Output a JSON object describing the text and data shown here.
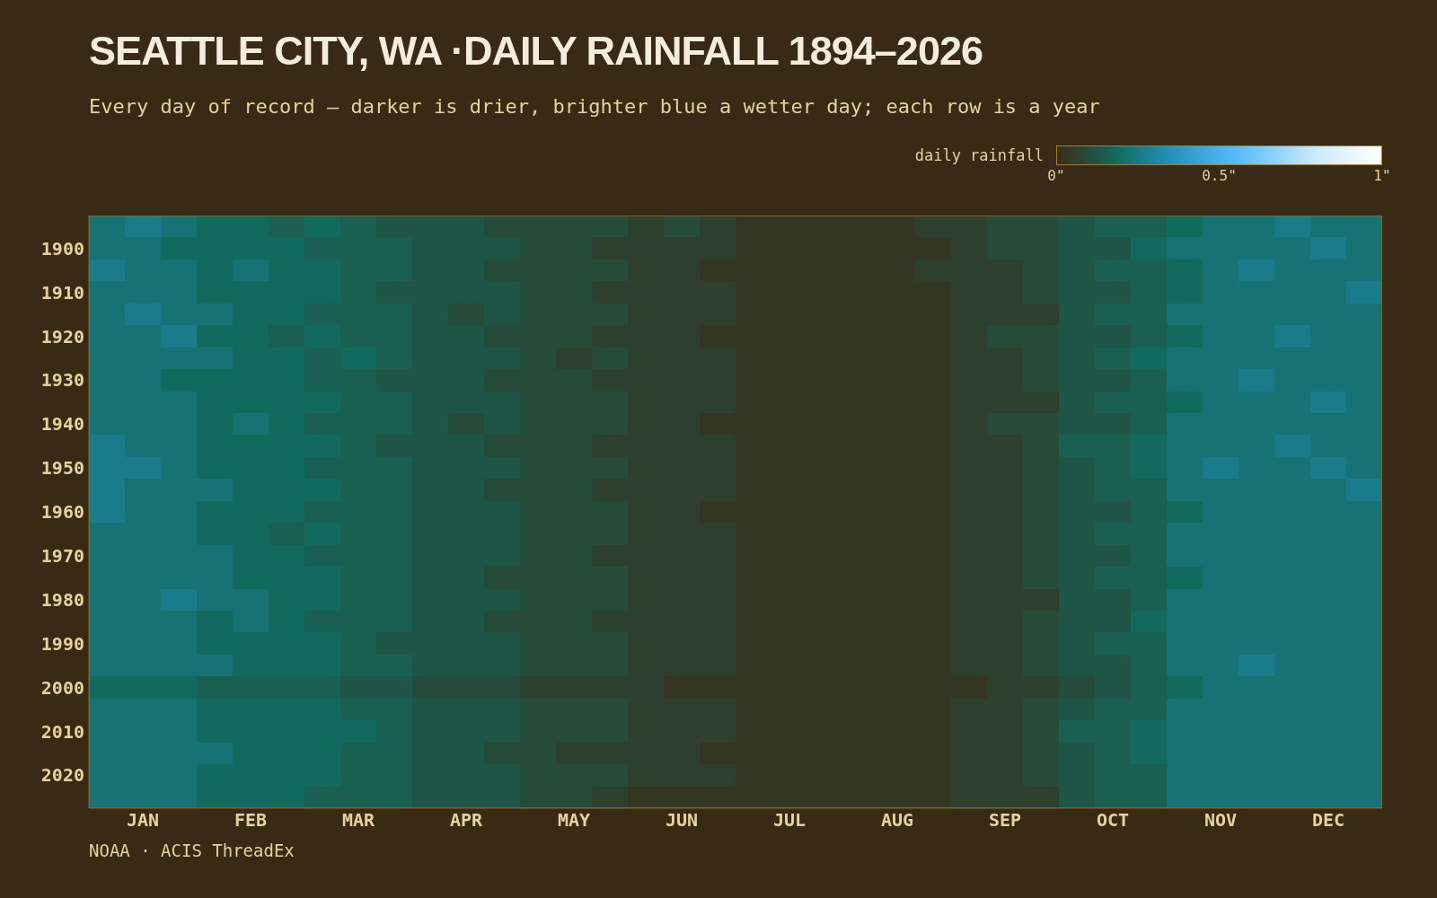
{
  "chart_data": {
    "type": "heatmap",
    "title": "SEATTLE CITY, WA ·DAILY RAINFALL 1894–2026",
    "subtitle": "Every day of record — darker is drier, brighter blue a wetter day; each row is a year",
    "clabel": "daily rainfall",
    "clim": [
      0,
      1
    ],
    "cticks": [
      {
        "value": 0,
        "label": "0\""
      },
      {
        "value": 0.5,
        "label": "0.5\""
      },
      {
        "value": 1,
        "label": "1\""
      }
    ],
    "categories": [
      null,
      "JAN",
      null,
      null,
      "FEB",
      null,
      null,
      "MAR",
      null,
      null,
      "APR",
      null,
      null,
      "MAY",
      null,
      null,
      "JUN",
      null,
      null,
      "JUL",
      null,
      null,
      "AUG",
      null,
      null,
      "SEP",
      null,
      null,
      "OCT",
      null,
      null,
      "NOV",
      null,
      null,
      "DEC",
      null
    ],
    "y_categories": [
      null,
      "1900",
      null,
      "1910",
      null,
      "1920",
      null,
      "1930",
      null,
      "1940",
      null,
      "1950",
      null,
      "1960",
      null,
      "1970",
      null,
      "1980",
      null,
      "1990",
      null,
      "2000",
      null,
      "2010",
      null,
      "2020",
      null
    ],
    "cells": [
      [
        0.22,
        0.26,
        0.22,
        0.18,
        0.18,
        0.15,
        0.18,
        0.15,
        0.12,
        0.12,
        0.12,
        0.09,
        0.09,
        0.09,
        0.09,
        0.06,
        0.09,
        0.06,
        0.03,
        0.03,
        0.03,
        0.03,
        0.03,
        0.06,
        0.06,
        0.09,
        0.09,
        0.12,
        0.15,
        0.15,
        0.18,
        0.22,
        0.22,
        0.26,
        0.22,
        0.22
      ],
      [
        0.22,
        0.22,
        0.18,
        0.18,
        0.18,
        0.18,
        0.15,
        0.15,
        0.15,
        0.12,
        0.12,
        0.12,
        0.09,
        0.09,
        0.06,
        0.06,
        0.06,
        0.06,
        0.03,
        0.03,
        0.03,
        0.03,
        0.03,
        0.03,
        0.06,
        0.09,
        0.09,
        0.12,
        0.12,
        0.18,
        0.22,
        0.22,
        0.22,
        0.22,
        0.26,
        0.22
      ],
      [
        0.26,
        0.22,
        0.22,
        0.18,
        0.22,
        0.18,
        0.18,
        0.15,
        0.15,
        0.12,
        0.12,
        0.09,
        0.09,
        0.09,
        0.09,
        0.06,
        0.06,
        0.03,
        0.03,
        0.03,
        0.03,
        0.03,
        0.03,
        0.06,
        0.06,
        0.06,
        0.09,
        0.12,
        0.15,
        0.15,
        0.18,
        0.22,
        0.26,
        0.22,
        0.22,
        0.22
      ],
      [
        0.22,
        0.22,
        0.22,
        0.18,
        0.18,
        0.18,
        0.18,
        0.15,
        0.12,
        0.12,
        0.12,
        0.12,
        0.09,
        0.09,
        0.06,
        0.06,
        0.06,
        0.06,
        0.03,
        0.03,
        0.03,
        0.03,
        0.03,
        0.03,
        0.06,
        0.06,
        0.09,
        0.12,
        0.12,
        0.15,
        0.18,
        0.22,
        0.22,
        0.22,
        0.22,
        0.26
      ],
      [
        0.22,
        0.26,
        0.22,
        0.22,
        0.18,
        0.18,
        0.15,
        0.15,
        0.15,
        0.12,
        0.09,
        0.12,
        0.09,
        0.09,
        0.09,
        0.06,
        0.06,
        0.06,
        0.03,
        0.03,
        0.03,
        0.03,
        0.03,
        0.03,
        0.06,
        0.06,
        0.06,
        0.12,
        0.15,
        0.15,
        0.22,
        0.22,
        0.22,
        0.22,
        0.22,
        0.22
      ],
      [
        0.22,
        0.22,
        0.26,
        0.18,
        0.18,
        0.15,
        0.18,
        0.15,
        0.15,
        0.12,
        0.12,
        0.09,
        0.09,
        0.09,
        0.06,
        0.06,
        0.06,
        0.03,
        0.03,
        0.03,
        0.03,
        0.03,
        0.03,
        0.03,
        0.06,
        0.09,
        0.09,
        0.12,
        0.12,
        0.15,
        0.18,
        0.22,
        0.22,
        0.26,
        0.22,
        0.22
      ],
      [
        0.22,
        0.22,
        0.22,
        0.22,
        0.18,
        0.18,
        0.15,
        0.18,
        0.15,
        0.12,
        0.12,
        0.12,
        0.09,
        0.06,
        0.09,
        0.06,
        0.06,
        0.06,
        0.03,
        0.03,
        0.03,
        0.03,
        0.03,
        0.03,
        0.06,
        0.06,
        0.09,
        0.12,
        0.15,
        0.18,
        0.22,
        0.22,
        0.22,
        0.22,
        0.22,
        0.22
      ],
      [
        0.22,
        0.22,
        0.18,
        0.18,
        0.18,
        0.18,
        0.15,
        0.15,
        0.12,
        0.12,
        0.12,
        0.09,
        0.09,
        0.09,
        0.06,
        0.06,
        0.06,
        0.06,
        0.03,
        0.03,
        0.03,
        0.03,
        0.03,
        0.03,
        0.06,
        0.06,
        0.09,
        0.12,
        0.12,
        0.15,
        0.22,
        0.22,
        0.26,
        0.22,
        0.22,
        0.22
      ],
      [
        0.22,
        0.22,
        0.22,
        0.18,
        0.18,
        0.18,
        0.18,
        0.15,
        0.15,
        0.12,
        0.12,
        0.12,
        0.09,
        0.09,
        0.09,
        0.06,
        0.06,
        0.06,
        0.03,
        0.03,
        0.03,
        0.03,
        0.03,
        0.03,
        0.06,
        0.06,
        0.06,
        0.12,
        0.15,
        0.15,
        0.18,
        0.22,
        0.22,
        0.22,
        0.26,
        0.22
      ],
      [
        0.22,
        0.22,
        0.22,
        0.18,
        0.22,
        0.18,
        0.15,
        0.15,
        0.15,
        0.12,
        0.09,
        0.12,
        0.09,
        0.09,
        0.09,
        0.06,
        0.06,
        0.03,
        0.03,
        0.03,
        0.03,
        0.03,
        0.03,
        0.03,
        0.06,
        0.09,
        0.09,
        0.12,
        0.12,
        0.15,
        0.22,
        0.22,
        0.22,
        0.22,
        0.22,
        0.22
      ],
      [
        0.26,
        0.22,
        0.22,
        0.18,
        0.18,
        0.18,
        0.18,
        0.15,
        0.12,
        0.12,
        0.12,
        0.09,
        0.09,
        0.09,
        0.06,
        0.06,
        0.06,
        0.06,
        0.03,
        0.03,
        0.03,
        0.03,
        0.03,
        0.03,
        0.06,
        0.06,
        0.09,
        0.15,
        0.15,
        0.18,
        0.22,
        0.22,
        0.22,
        0.26,
        0.22,
        0.22
      ],
      [
        0.26,
        0.26,
        0.22,
        0.18,
        0.18,
        0.18,
        0.15,
        0.15,
        0.15,
        0.12,
        0.12,
        0.12,
        0.09,
        0.09,
        0.09,
        0.06,
        0.06,
        0.06,
        0.03,
        0.03,
        0.03,
        0.03,
        0.03,
        0.03,
        0.06,
        0.06,
        0.09,
        0.12,
        0.15,
        0.18,
        0.22,
        0.26,
        0.22,
        0.22,
        0.26,
        0.22
      ],
      [
        0.26,
        0.22,
        0.22,
        0.22,
        0.18,
        0.18,
        0.18,
        0.15,
        0.15,
        0.12,
        0.12,
        0.09,
        0.09,
        0.09,
        0.06,
        0.06,
        0.06,
        0.06,
        0.03,
        0.03,
        0.03,
        0.03,
        0.03,
        0.03,
        0.06,
        0.06,
        0.09,
        0.12,
        0.15,
        0.15,
        0.22,
        0.22,
        0.22,
        0.22,
        0.22,
        0.26
      ],
      [
        0.26,
        0.22,
        0.22,
        0.18,
        0.18,
        0.18,
        0.15,
        0.15,
        0.15,
        0.12,
        0.12,
        0.12,
        0.09,
        0.09,
        0.09,
        0.06,
        0.06,
        0.03,
        0.03,
        0.03,
        0.03,
        0.03,
        0.03,
        0.03,
        0.06,
        0.06,
        0.09,
        0.12,
        0.12,
        0.15,
        0.18,
        0.22,
        0.22,
        0.22,
        0.22,
        0.22
      ],
      [
        0.22,
        0.22,
        0.22,
        0.18,
        0.18,
        0.15,
        0.18,
        0.15,
        0.15,
        0.12,
        0.12,
        0.12,
        0.09,
        0.09,
        0.09,
        0.06,
        0.06,
        0.06,
        0.03,
        0.03,
        0.03,
        0.03,
        0.03,
        0.03,
        0.06,
        0.06,
        0.09,
        0.12,
        0.15,
        0.15,
        0.22,
        0.22,
        0.22,
        0.22,
        0.22,
        0.22
      ],
      [
        0.22,
        0.22,
        0.22,
        0.22,
        0.18,
        0.18,
        0.15,
        0.15,
        0.15,
        0.12,
        0.12,
        0.12,
        0.09,
        0.09,
        0.06,
        0.06,
        0.06,
        0.06,
        0.03,
        0.03,
        0.03,
        0.03,
        0.03,
        0.03,
        0.06,
        0.06,
        0.09,
        0.12,
        0.12,
        0.15,
        0.22,
        0.22,
        0.22,
        0.22,
        0.22,
        0.22
      ],
      [
        0.22,
        0.22,
        0.22,
        0.22,
        0.18,
        0.18,
        0.18,
        0.15,
        0.15,
        0.12,
        0.12,
        0.09,
        0.09,
        0.09,
        0.09,
        0.06,
        0.06,
        0.06,
        0.03,
        0.03,
        0.03,
        0.03,
        0.03,
        0.03,
        0.06,
        0.06,
        0.09,
        0.12,
        0.15,
        0.15,
        0.18,
        0.22,
        0.22,
        0.22,
        0.22,
        0.22
      ],
      [
        0.22,
        0.22,
        0.26,
        0.22,
        0.22,
        0.18,
        0.18,
        0.15,
        0.15,
        0.12,
        0.12,
        0.12,
        0.09,
        0.09,
        0.09,
        0.06,
        0.06,
        0.06,
        0.03,
        0.03,
        0.03,
        0.03,
        0.03,
        0.03,
        0.06,
        0.06,
        0.06,
        0.12,
        0.12,
        0.15,
        0.22,
        0.22,
        0.22,
        0.22,
        0.22,
        0.22
      ],
      [
        0.22,
        0.22,
        0.22,
        0.18,
        0.22,
        0.18,
        0.15,
        0.15,
        0.15,
        0.12,
        0.12,
        0.09,
        0.09,
        0.09,
        0.06,
        0.06,
        0.06,
        0.06,
        0.03,
        0.03,
        0.03,
        0.03,
        0.03,
        0.03,
        0.06,
        0.06,
        0.09,
        0.12,
        0.12,
        0.18,
        0.22,
        0.22,
        0.22,
        0.22,
        0.22,
        0.22
      ],
      [
        0.22,
        0.22,
        0.22,
        0.18,
        0.18,
        0.18,
        0.18,
        0.15,
        0.12,
        0.12,
        0.12,
        0.12,
        0.09,
        0.09,
        0.09,
        0.06,
        0.06,
        0.06,
        0.03,
        0.03,
        0.03,
        0.03,
        0.03,
        0.03,
        0.06,
        0.06,
        0.09,
        0.12,
        0.15,
        0.15,
        0.22,
        0.22,
        0.22,
        0.22,
        0.22,
        0.22
      ],
      [
        0.22,
        0.22,
        0.22,
        0.22,
        0.18,
        0.18,
        0.18,
        0.15,
        0.15,
        0.12,
        0.12,
        0.12,
        0.09,
        0.09,
        0.09,
        0.06,
        0.06,
        0.06,
        0.03,
        0.03,
        0.03,
        0.03,
        0.03,
        0.03,
        0.06,
        0.06,
        0.09,
        0.12,
        0.12,
        0.15,
        0.22,
        0.22,
        0.26,
        0.22,
        0.22,
        0.22
      ],
      [
        0.18,
        0.18,
        0.18,
        0.15,
        0.15,
        0.15,
        0.15,
        0.12,
        0.12,
        0.09,
        0.09,
        0.09,
        0.06,
        0.06,
        0.06,
        0.06,
        0.03,
        0.03,
        0.03,
        0.03,
        0.03,
        0.03,
        0.03,
        0.03,
        0.03,
        0.06,
        0.06,
        0.09,
        0.12,
        0.15,
        0.18,
        0.22,
        0.22,
        0.22,
        0.22,
        0.22
      ],
      [
        0.22,
        0.22,
        0.22,
        0.18,
        0.18,
        0.18,
        0.18,
        0.15,
        0.15,
        0.12,
        0.12,
        0.12,
        0.09,
        0.09,
        0.09,
        0.06,
        0.06,
        0.06,
        0.03,
        0.03,
        0.03,
        0.03,
        0.03,
        0.03,
        0.06,
        0.06,
        0.09,
        0.12,
        0.15,
        0.15,
        0.22,
        0.22,
        0.22,
        0.22,
        0.22,
        0.22
      ],
      [
        0.22,
        0.22,
        0.22,
        0.18,
        0.18,
        0.18,
        0.18,
        0.18,
        0.15,
        0.12,
        0.12,
        0.12,
        0.09,
        0.09,
        0.09,
        0.06,
        0.06,
        0.06,
        0.03,
        0.03,
        0.03,
        0.03,
        0.03,
        0.03,
        0.06,
        0.06,
        0.09,
        0.15,
        0.15,
        0.18,
        0.22,
        0.22,
        0.22,
        0.22,
        0.22,
        0.22
      ],
      [
        0.22,
        0.22,
        0.22,
        0.22,
        0.18,
        0.18,
        0.18,
        0.15,
        0.15,
        0.12,
        0.12,
        0.09,
        0.09,
        0.06,
        0.06,
        0.06,
        0.06,
        0.03,
        0.03,
        0.03,
        0.03,
        0.03,
        0.03,
        0.03,
        0.06,
        0.06,
        0.09,
        0.12,
        0.15,
        0.18,
        0.22,
        0.22,
        0.22,
        0.22,
        0.22,
        0.22
      ],
      [
        0.22,
        0.22,
        0.22,
        0.18,
        0.18,
        0.18,
        0.18,
        0.15,
        0.15,
        0.12,
        0.12,
        0.12,
        0.09,
        0.09,
        0.09,
        0.06,
        0.06,
        0.06,
        0.03,
        0.03,
        0.03,
        0.03,
        0.03,
        0.03,
        0.06,
        0.06,
        0.09,
        0.12,
        0.15,
        0.15,
        0.22,
        0.22,
        0.22,
        0.22,
        0.22,
        0.22
      ],
      [
        0.22,
        0.22,
        0.22,
        0.18,
        0.18,
        0.18,
        0.15,
        0.15,
        0.15,
        0.12,
        0.12,
        0.12,
        0.09,
        0.09,
        0.06,
        0.03,
        0.03,
        0.03,
        0.03,
        0.03,
        0.03,
        0.03,
        0.03,
        0.03,
        0.06,
        0.06,
        0.06,
        0.12,
        0.15,
        0.15,
        0.22,
        0.22,
        0.22,
        0.22,
        0.22,
        0.22
      ]
    ],
    "annotations": [
      "NOAA · ACIS ThreadEx"
    ]
  }
}
